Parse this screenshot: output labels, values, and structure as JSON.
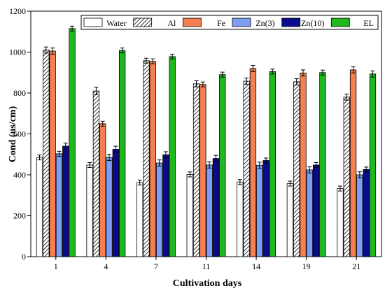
{
  "chart_data": {
    "type": "bar",
    "xlabel": "Cultivation days",
    "ylabel": "Cond (us/cm)",
    "categories": [
      "1",
      "4",
      "7",
      "11",
      "14",
      "19",
      "21"
    ],
    "ylim": [
      0,
      1200
    ],
    "yticks": [
      0,
      200,
      400,
      600,
      800,
      1000,
      1200
    ],
    "grid": false,
    "legend_position": "top",
    "series": [
      {
        "name": "Water",
        "fill": "#ffffff",
        "pattern": "none",
        "values": [
          485,
          448,
          362,
          402,
          365,
          357,
          333
        ],
        "errors": [
          12,
          12,
          12,
          12,
          12,
          12,
          12
        ]
      },
      {
        "name": "Al",
        "fill": "#ffffff",
        "pattern": "hatch",
        "values": [
          1010,
          810,
          958,
          845,
          858,
          855,
          780
        ],
        "errors": [
          15,
          18,
          12,
          15,
          15,
          15,
          15
        ]
      },
      {
        "name": "Fe",
        "fill": "#f47f4f",
        "pattern": "none",
        "values": [
          1005,
          650,
          955,
          842,
          920,
          898,
          913
        ],
        "errors": [
          15,
          12,
          12,
          12,
          15,
          15,
          15
        ]
      },
      {
        "name": "Zn(3)",
        "fill": "#7d9ef4",
        "pattern": "none",
        "values": [
          503,
          485,
          458,
          448,
          447,
          424,
          400
        ],
        "errors": [
          12,
          15,
          15,
          15,
          15,
          15,
          15
        ]
      },
      {
        "name": "Zn(10)",
        "fill": "#0b0b8e",
        "pattern": "none",
        "values": [
          540,
          525,
          498,
          480,
          470,
          448,
          426
        ],
        "errors": [
          15,
          15,
          15,
          15,
          12,
          12,
          12
        ]
      },
      {
        "name": "EL",
        "fill": "#1fb91f",
        "pattern": "none",
        "values": [
          1115,
          1008,
          978,
          890,
          905,
          900,
          893
        ],
        "errors": [
          12,
          12,
          12,
          12,
          12,
          12,
          15
        ]
      }
    ]
  }
}
